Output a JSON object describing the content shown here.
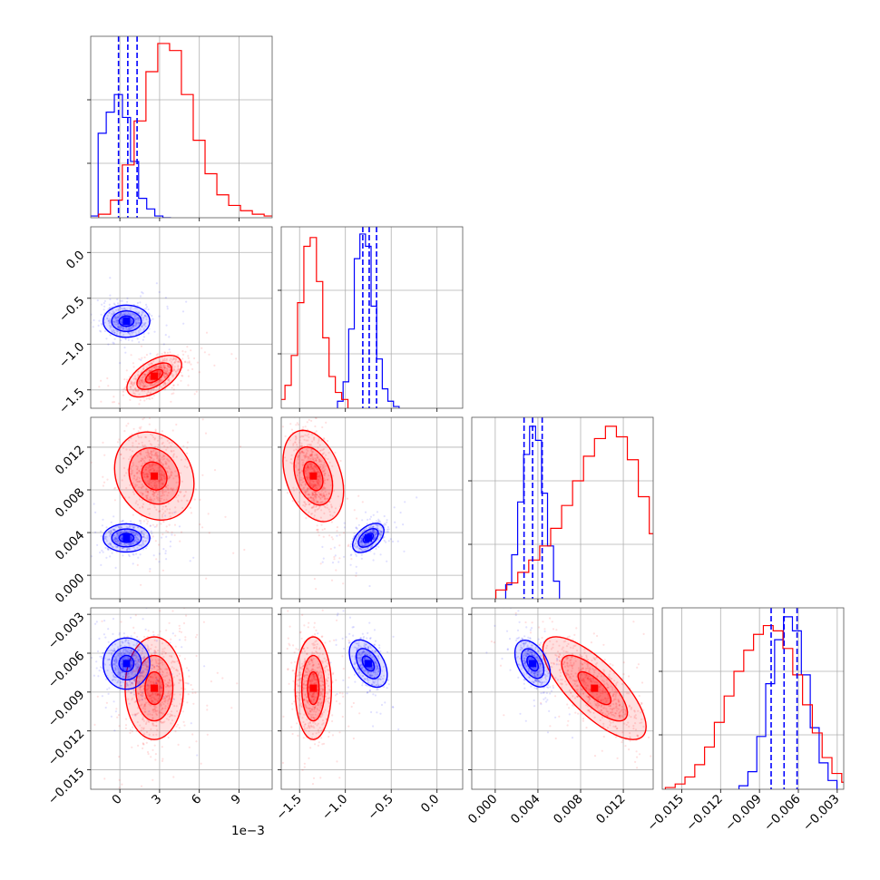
{
  "chart_data": {
    "type": "corner",
    "colors": {
      "primary": "#0000ff",
      "secondary": "#ff0000"
    },
    "params": [
      {
        "range": [
          -2.2,
          11.5
        ],
        "ticks": [
          0,
          3,
          6,
          9
        ],
        "tick_labels": [
          "0",
          "3",
          "6",
          "9"
        ],
        "offset_label": "1e−3"
      },
      {
        "range": [
          -1.7,
          0.28
        ],
        "ticks": [
          -1.5,
          -1.0,
          -0.5,
          0.0
        ],
        "tick_labels": [
          "−1.5",
          "−1.0",
          "−0.5",
          "0.0"
        ]
      },
      {
        "range": [
          -0.0022,
          0.0148
        ],
        "ticks": [
          0.0,
          0.004,
          0.008,
          0.012
        ],
        "tick_labels": [
          "0.000",
          "0.004",
          "0.008",
          "0.012"
        ]
      },
      {
        "range": [
          -0.0165,
          -0.0025
        ],
        "ticks": [
          -0.015,
          -0.012,
          -0.009,
          -0.006,
          -0.003
        ],
        "tick_labels": [
          "−0.015",
          "−0.012",
          "−0.009",
          "−0.006",
          "−0.003"
        ]
      }
    ],
    "y_tick_labels": {
      "1": [
        "0.0",
        "−0.5",
        "−1.0",
        "−1.5"
      ],
      "2": [
        "0.012",
        "0.008",
        "0.004",
        "0.000"
      ],
      "3": [
        "−0.003",
        "−0.006",
        "−0.009",
        "−0.012",
        "−0.015"
      ]
    },
    "y_tick_values": {
      "1": [
        0.0,
        -0.5,
        -1.0,
        -1.5
      ],
      "2": [
        0.012,
        0.008,
        0.004,
        0.0
      ],
      "3": [
        -0.003,
        -0.006,
        -0.009,
        -0.012,
        -0.015
      ]
    },
    "series": [
      {
        "color": "#0000ff",
        "mean": [
          0.5,
          -0.75,
          0.0035,
          -0.0068
        ],
        "sd": [
          0.8,
          0.08,
          0.0006,
          0.0009
        ],
        "quantiles": [
          [
            -0.1,
            0.6,
            1.3
          ],
          [
            -0.81,
            -0.74,
            -0.66
          ],
          [
            0.0027,
            0.0035,
            0.0044
          ],
          [
            -0.0081,
            -0.0071,
            -0.0061
          ]
        ]
      },
      {
        "color": "#ff0000",
        "mean": [
          2.6,
          -1.35,
          0.0093,
          -0.0087
        ],
        "sd": [
          1.0,
          0.09,
          0.0022,
          0.0018
        ]
      }
    ],
    "hist_heights": {
      "0": {
        "blue": [
          0.0,
          0.01,
          0.48,
          0.6,
          0.7,
          0.57,
          0.32,
          0.11,
          0.05,
          0.01,
          0.0
        ],
        "red": [
          0.02,
          0.1,
          0.3,
          0.55,
          0.83,
          0.99,
          0.95,
          0.7,
          0.44,
          0.25,
          0.13,
          0.07,
          0.04,
          0.02,
          0.01,
          0.005
        ]
      },
      "1": {
        "red": [
          0.05,
          0.13,
          0.3,
          0.6,
          0.92,
          0.97,
          0.72,
          0.4,
          0.18,
          0.09,
          0.05
        ],
        "blue": [
          0.04,
          0.15,
          0.45,
          0.85,
          0.99,
          0.92,
          0.58,
          0.28,
          0.11,
          0.04,
          0.01
        ]
      },
      "2": {
        "blue": [
          0.08,
          0.25,
          0.55,
          0.82,
          0.98,
          0.9,
          0.6,
          0.3,
          0.1
        ],
        "red": [
          0.05,
          0.09,
          0.15,
          0.22,
          0.3,
          0.4,
          0.53,
          0.67,
          0.81,
          0.91,
          0.98,
          0.92,
          0.79,
          0.58,
          0.37,
          0.2,
          0.08,
          0.03
        ]
      },
      "3": {
        "red": [
          0.01,
          0.03,
          0.07,
          0.14,
          0.24,
          0.38,
          0.53,
          0.67,
          0.79,
          0.88,
          0.93,
          0.9,
          0.8,
          0.65,
          0.48,
          0.32,
          0.18,
          0.09,
          0.04,
          0.02
        ],
        "blue": [
          0.02,
          0.1,
          0.3,
          0.6,
          0.85,
          0.98,
          0.9,
          0.65,
          0.35,
          0.15,
          0.05
        ]
      }
    },
    "grid": true
  }
}
